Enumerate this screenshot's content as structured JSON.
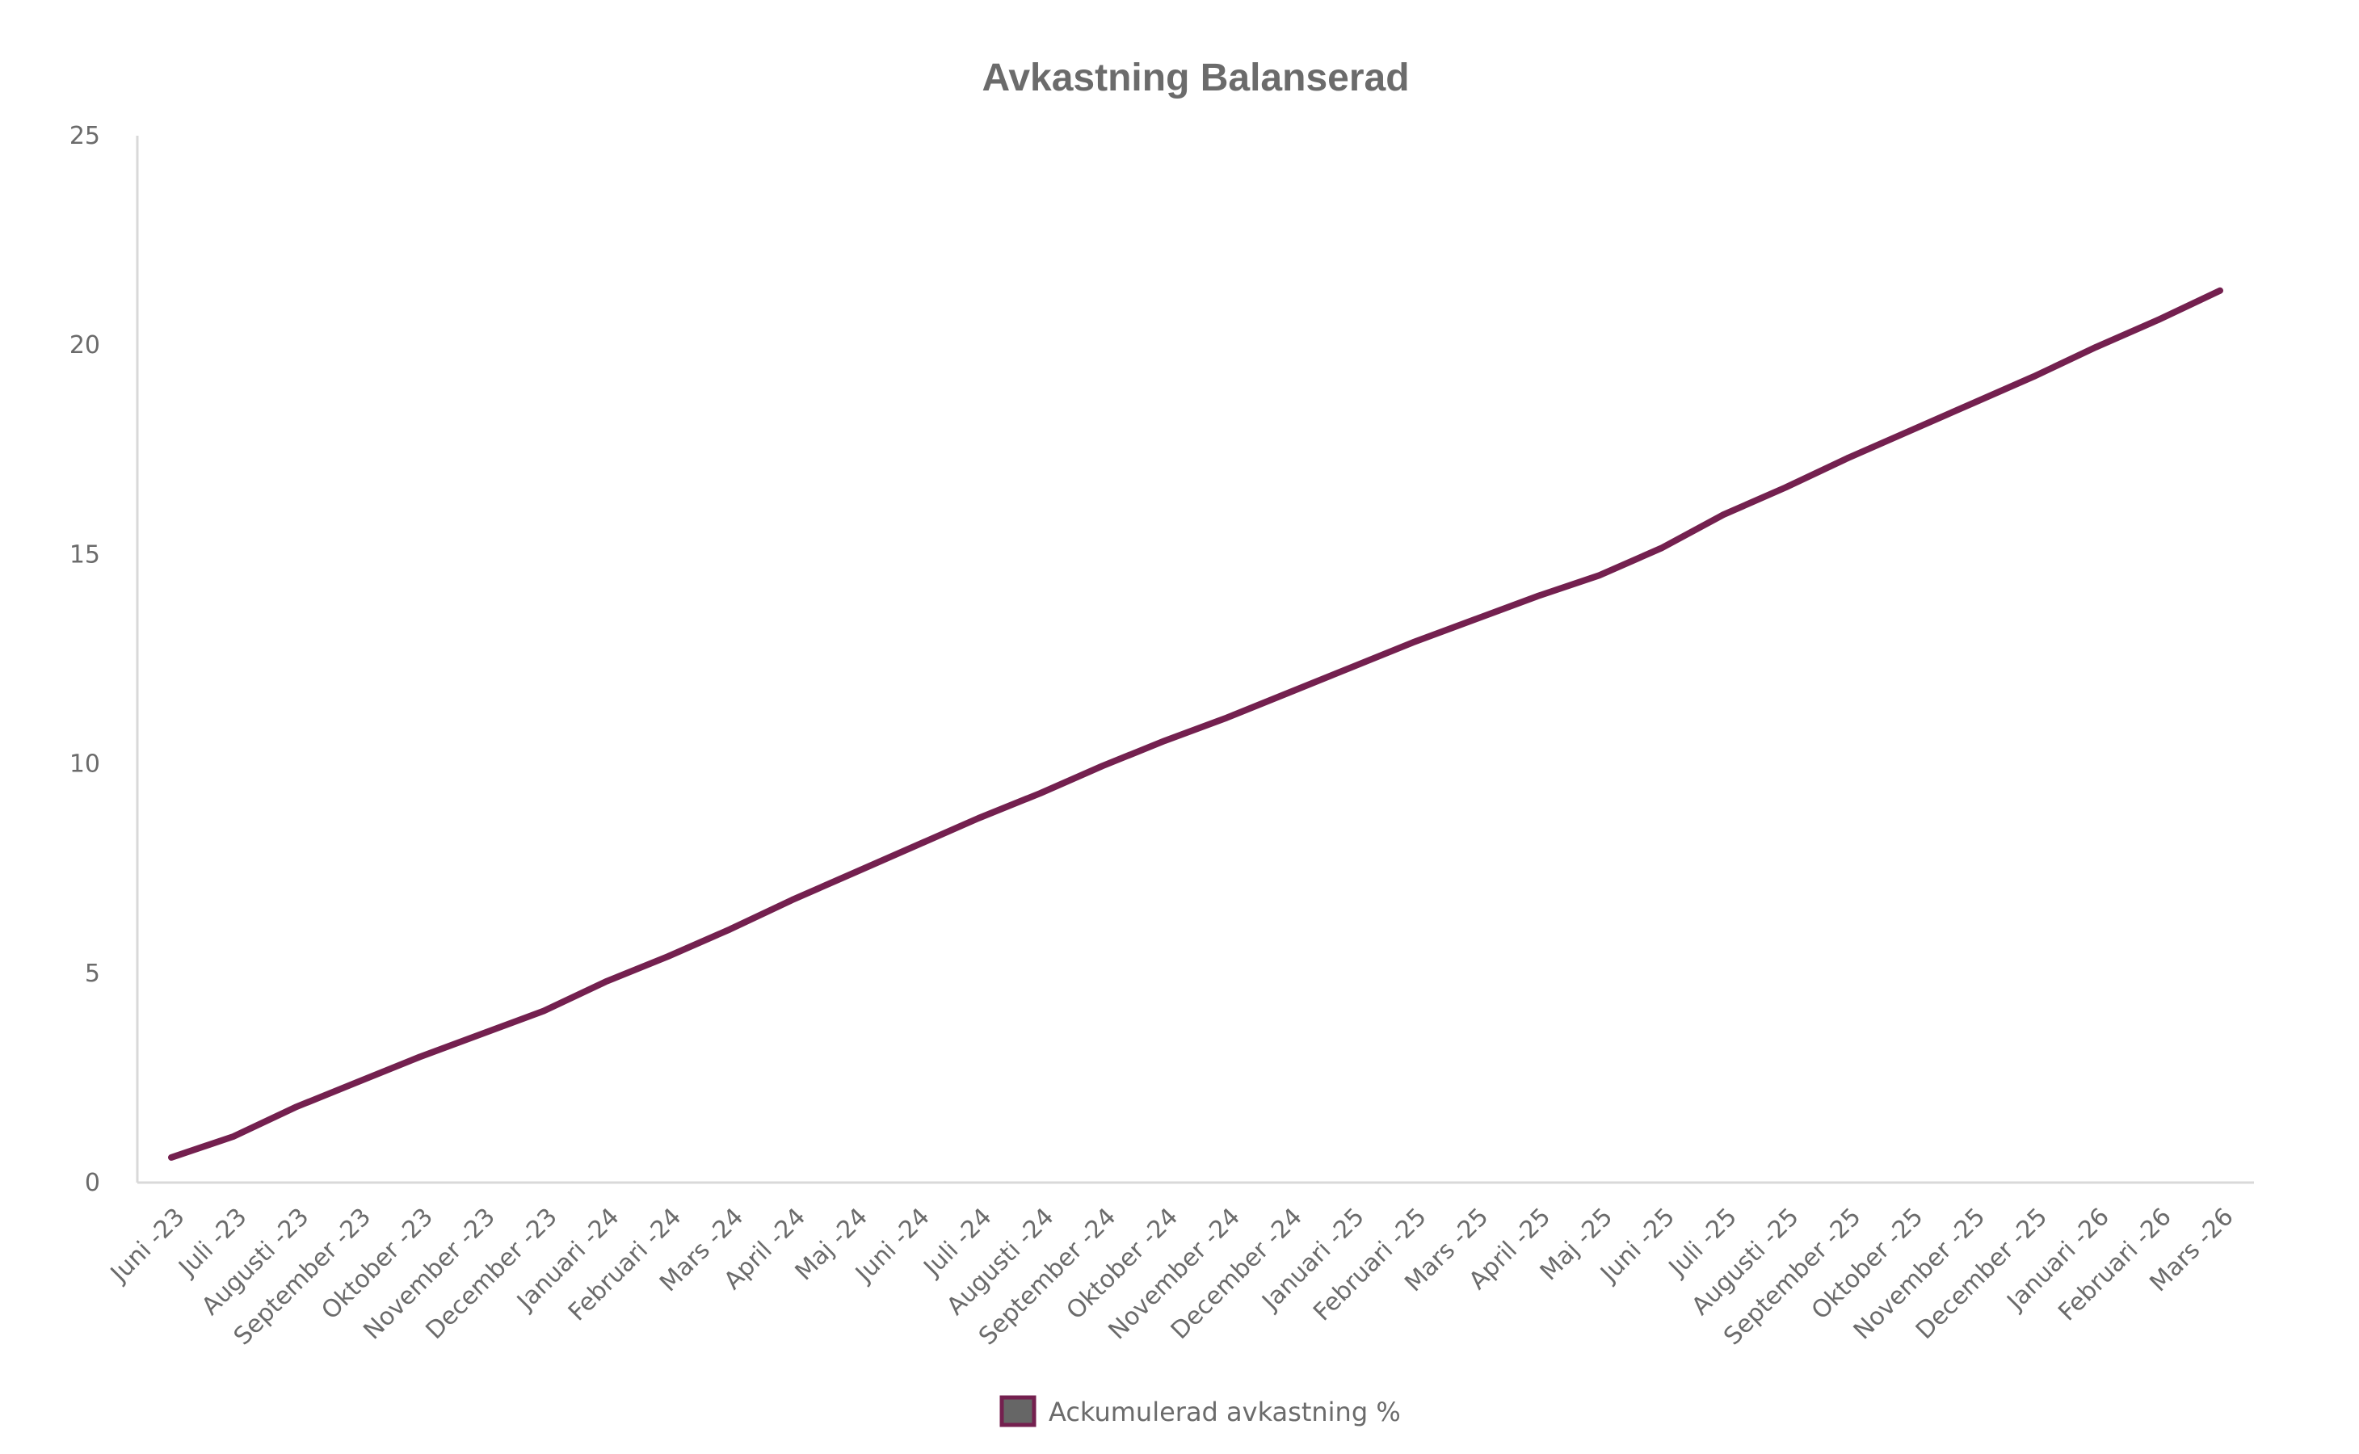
{
  "chart_data": {
    "type": "line",
    "title": "Avkastning Balanserad",
    "xlabel": "",
    "ylabel": "",
    "ylim": [
      0,
      25
    ],
    "yticks": [
      0,
      5,
      10,
      15,
      20,
      25
    ],
    "grid": false,
    "legend_position": "bottom",
    "categories": [
      "Juni -23",
      "Juli -23",
      "Augusti -23",
      "September -23",
      "Oktober -23",
      "November -23",
      "December -23",
      "Januari -24",
      "Februari -24",
      "Mars -24",
      "April -24",
      "Maj -24",
      "Juni -24",
      "Juli -24",
      "Augusti -24",
      "September -24",
      "Oktober -24",
      "November -24",
      "December -24",
      "Januari -25",
      "Februari -25",
      "Mars -25",
      "April -25",
      "Maj -25",
      "Juni -25",
      "Juli -25",
      "Augusti -25",
      "September -25",
      "Oktober -25",
      "November -25",
      "December -25",
      "Januari -26",
      "Februari -26",
      "Mars -26"
    ],
    "series": [
      {
        "name": "Ackumulerad avkastning %",
        "color": "#74204f",
        "values": [
          0.6,
          1.1,
          1.8,
          2.4,
          3.0,
          3.55,
          4.1,
          4.8,
          5.4,
          6.05,
          6.75,
          7.4,
          8.05,
          8.7,
          9.3,
          9.95,
          10.55,
          11.1,
          11.7,
          12.3,
          12.9,
          13.45,
          14.0,
          14.5,
          15.15,
          15.95,
          16.6,
          17.3,
          17.95,
          18.6,
          19.25,
          19.95,
          20.6,
          21.3
        ]
      }
    ]
  },
  "colors": {
    "line": "#74204f",
    "axis": "#d9d9d9",
    "text": "#6b6b6b",
    "legend_fill": "#666666"
  }
}
